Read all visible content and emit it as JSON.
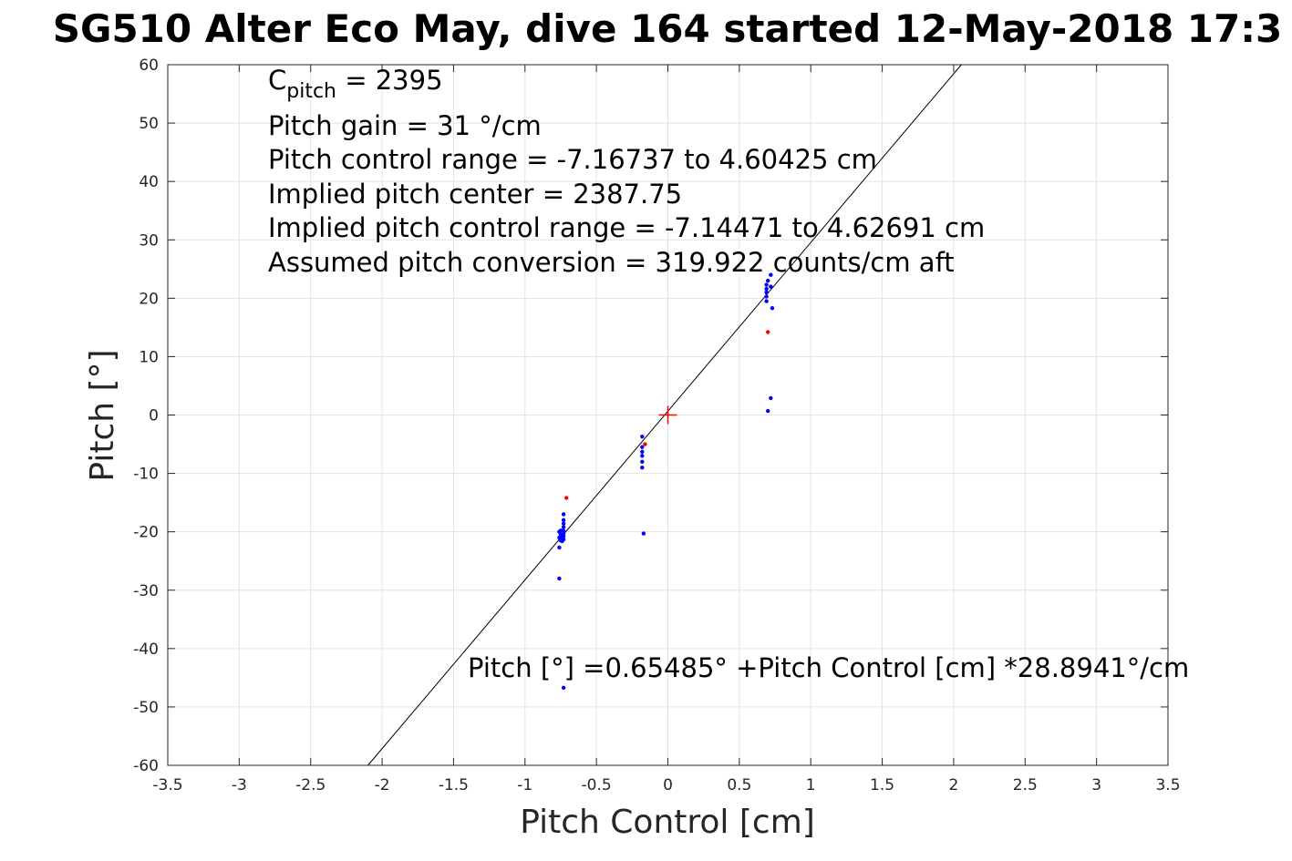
{
  "chart_data": {
    "type": "scatter",
    "title": "SG510 Alter Eco May, dive 164 started 12-May-2018 17:3",
    "xlabel": "Pitch Control [cm]",
    "ylabel": "Pitch [°]",
    "xlim": [
      -3.5,
      3.5
    ],
    "ylim": [
      -60,
      60
    ],
    "x_ticks": [
      -3.5,
      -3,
      -2.5,
      -2,
      -1.5,
      -1,
      -0.5,
      0,
      0.5,
      1,
      1.5,
      2,
      2.5,
      3,
      3.5
    ],
    "y_ticks": [
      -60,
      -50,
      -40,
      -30,
      -20,
      -10,
      0,
      10,
      20,
      30,
      40,
      50,
      60
    ],
    "grid": true,
    "annotations": {
      "cpitch_symbol": "C",
      "cpitch_subscript": "pitch",
      "cpitch_value": " = 2395",
      "pitch_gain": "Pitch gain = 31 °/cm",
      "control_range": "Pitch control range = -7.16737 to 4.60425 cm",
      "implied_center": "Implied pitch center = 2387.75",
      "implied_range": "Implied pitch control range = -7.14471 to 4.62691 cm",
      "assumed_conversion": "Assumed pitch conversion = 319.922 counts/cm aft",
      "fit_equation": "Pitch [°] =0.65485° +Pitch Control [cm] *28.8941°/cm"
    },
    "fit_line": {
      "intercept": 0.65485,
      "slope": 28.8941,
      "color": "#000000"
    },
    "center_marker": {
      "x": 0,
      "y": 0,
      "color": "#ff0000"
    },
    "series": [
      {
        "color": "#0000ff",
        "points": [
          [
            -0.73,
            -17.0
          ],
          [
            -0.73,
            -18.0
          ],
          [
            -0.73,
            -18.6
          ],
          [
            -0.73,
            -19.2
          ],
          [
            -0.73,
            -19.8
          ],
          [
            -0.73,
            -20.3
          ],
          [
            -0.73,
            -20.8
          ],
          [
            -0.73,
            -21.3
          ],
          [
            -0.74,
            -21.6
          ],
          [
            -0.75,
            -19.8
          ],
          [
            -0.75,
            -20.5
          ],
          [
            -0.75,
            -21.0
          ],
          [
            -0.75,
            -21.5
          ],
          [
            -0.76,
            -20.0
          ],
          [
            -0.76,
            -21.0
          ],
          [
            -0.76,
            -22.7
          ],
          [
            -0.76,
            -28.0
          ],
          [
            -0.73,
            -46.7
          ],
          [
            -0.18,
            -3.7
          ],
          [
            -0.18,
            -5.5
          ],
          [
            -0.18,
            -6.3
          ],
          [
            -0.18,
            -7.0
          ],
          [
            -0.18,
            -8.0
          ],
          [
            -0.18,
            -9.0
          ],
          [
            -0.17,
            -20.3
          ],
          [
            0.69,
            19.5
          ],
          [
            0.69,
            20.3
          ],
          [
            0.69,
            21.0
          ],
          [
            0.69,
            21.6
          ],
          [
            0.69,
            22.3
          ],
          [
            0.7,
            23.0
          ],
          [
            0.72,
            22.0
          ],
          [
            0.72,
            24.0
          ],
          [
            0.73,
            18.3
          ],
          [
            0.7,
            0.7
          ],
          [
            0.72,
            2.9
          ]
        ]
      },
      {
        "color": "#ff0000",
        "points": [
          [
            -0.71,
            -14.2
          ],
          [
            -0.16,
            -5.0
          ],
          [
            0.7,
            14.2
          ]
        ]
      }
    ]
  }
}
